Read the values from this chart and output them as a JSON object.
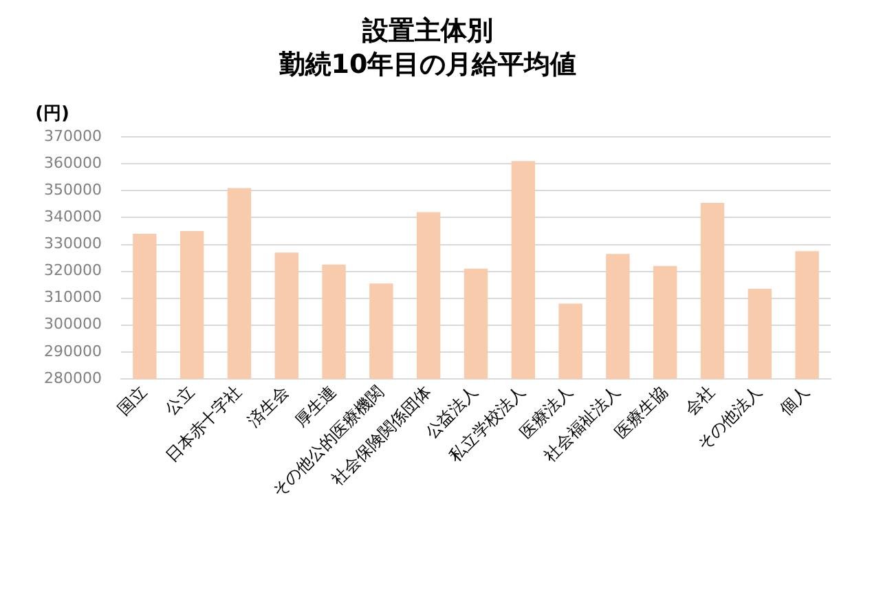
{
  "chart_data": {
    "type": "bar",
    "title": "設置主体別",
    "subtitle": "勤続10年目の月給平均値",
    "ylabel": "(円)",
    "categories": [
      "国立",
      "公立",
      "日本赤十字社",
      "済生会",
      "厚生連",
      "その他公的医療機関",
      "社会保険関係団体",
      "公益法人",
      "私立学校法人",
      "医療法人",
      "社会福祉法人",
      "医療生協",
      "会社",
      "その他法人",
      "個人"
    ],
    "values": [
      334000,
      335000,
      351000,
      327000,
      322500,
      315500,
      342000,
      321000,
      361000,
      308000,
      326500,
      322000,
      345500,
      313500,
      327500
    ],
    "color": "#f8cbad",
    "ylim": [
      280000,
      370000
    ],
    "yticks": [
      280000,
      290000,
      300000,
      310000,
      320000,
      330000,
      340000,
      350000,
      360000,
      370000
    ],
    "grid": "y",
    "legend": false
  }
}
